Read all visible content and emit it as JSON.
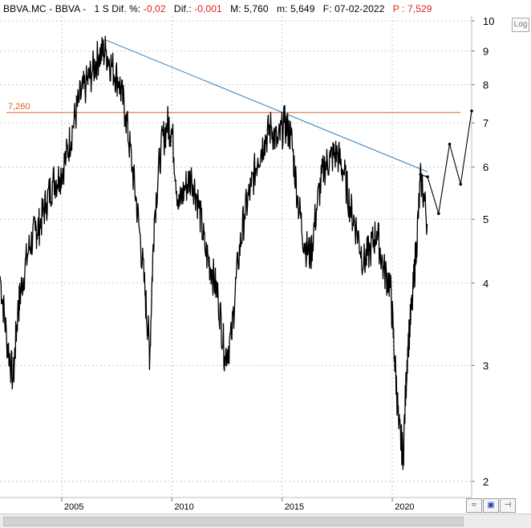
{
  "header": {
    "symbol": "BBVA.MC",
    "name": "BBVA",
    "period": "1 S",
    "dif_pct_label": "Dif. %:",
    "dif_pct_value": "-0,02",
    "dif_label": "Dif.:",
    "dif_value": "-0,001",
    "max_label": "M:",
    "max_value": "5,760",
    "min_label": "m:",
    "min_value": "5,649",
    "date_label": "F:",
    "date_value": "07-02-2022",
    "price_label": "P :",
    "price_value": "7,529"
  },
  "toolbar": {
    "log_label": "Log",
    "icons": [
      "compare-icon",
      "save-icon",
      "pin-icon"
    ]
  },
  "colors": {
    "price": "#000000",
    "resistance": "#e0602b",
    "trendline": "#2a7fc4",
    "grid": "#c8c8c8",
    "red_text": "#e0201b"
  },
  "chart_data": {
    "type": "line",
    "scale": "log",
    "ylim": [
      1.85,
      10.4
    ],
    "xlim": [
      2002.2,
      2023.6
    ],
    "y_ticks": [
      2,
      3,
      4,
      5,
      6,
      7,
      8,
      9,
      10
    ],
    "x_ticks": [
      2005,
      2010,
      2015,
      2020
    ],
    "grid": true,
    "annotations": {
      "horizontal_line": {
        "value": 7.26,
        "label": "7,260"
      },
      "trendline": {
        "from": [
          2007.0,
          9.35
        ],
        "to": [
          2021.6,
          5.9
        ]
      },
      "projection": {
        "x": [
          2021.2,
          2021.6,
          2022.1,
          2022.6,
          2023.1,
          2023.6
        ],
        "y": [
          5.85,
          5.8,
          5.1,
          6.5,
          5.65,
          7.3
        ]
      }
    },
    "series": [
      {
        "x": [
          2002.2,
          2002.5,
          2002.8,
          2003.0,
          2003.2,
          2003.5,
          2003.8,
          2004.0,
          2004.3,
          2004.6,
          2004.9,
          2005.2,
          2005.5,
          2005.8,
          2006.1,
          2006.4,
          2006.7,
          2007.0,
          2007.3,
          2007.6,
          2007.9,
          2008.2,
          2008.5,
          2008.8,
          2009.0,
          2009.2,
          2009.5,
          2009.8,
          2010.0,
          2010.3,
          2010.6,
          2010.9,
          2011.2,
          2011.5,
          2011.8,
          2012.1,
          2012.4,
          2012.7,
          2013.0,
          2013.3,
          2013.6,
          2013.9,
          2014.2,
          2014.5,
          2014.8,
          2015.1,
          2015.4,
          2015.7,
          2016.0,
          2016.3,
          2016.6,
          2016.9,
          2017.2,
          2017.5,
          2017.8,
          2018.1,
          2018.4,
          2018.7,
          2019.0,
          2019.3,
          2019.6,
          2019.9,
          2020.1,
          2020.3,
          2020.5,
          2020.7,
          2020.9,
          2021.1,
          2021.3,
          2021.6
        ],
        "y": [
          4.1,
          3.3,
          2.85,
          3.6,
          4.0,
          4.5,
          4.8,
          4.9,
          5.3,
          5.7,
          5.8,
          6.2,
          6.9,
          7.6,
          8.0,
          8.4,
          8.9,
          9.0,
          8.5,
          8.1,
          7.2,
          6.0,
          4.9,
          3.8,
          3.1,
          5.0,
          6.4,
          7.0,
          6.8,
          5.2,
          5.6,
          5.8,
          5.3,
          4.5,
          4.2,
          3.8,
          3.1,
          3.3,
          4.3,
          5.1,
          5.6,
          6.2,
          6.6,
          6.9,
          6.5,
          7.0,
          6.7,
          5.4,
          4.6,
          4.4,
          5.3,
          6.0,
          6.2,
          6.3,
          5.9,
          5.2,
          4.8,
          4.3,
          4.5,
          4.8,
          4.2,
          4.0,
          3.1,
          2.4,
          2.2,
          3.2,
          3.7,
          4.6,
          5.8,
          4.9
        ]
      }
    ]
  }
}
